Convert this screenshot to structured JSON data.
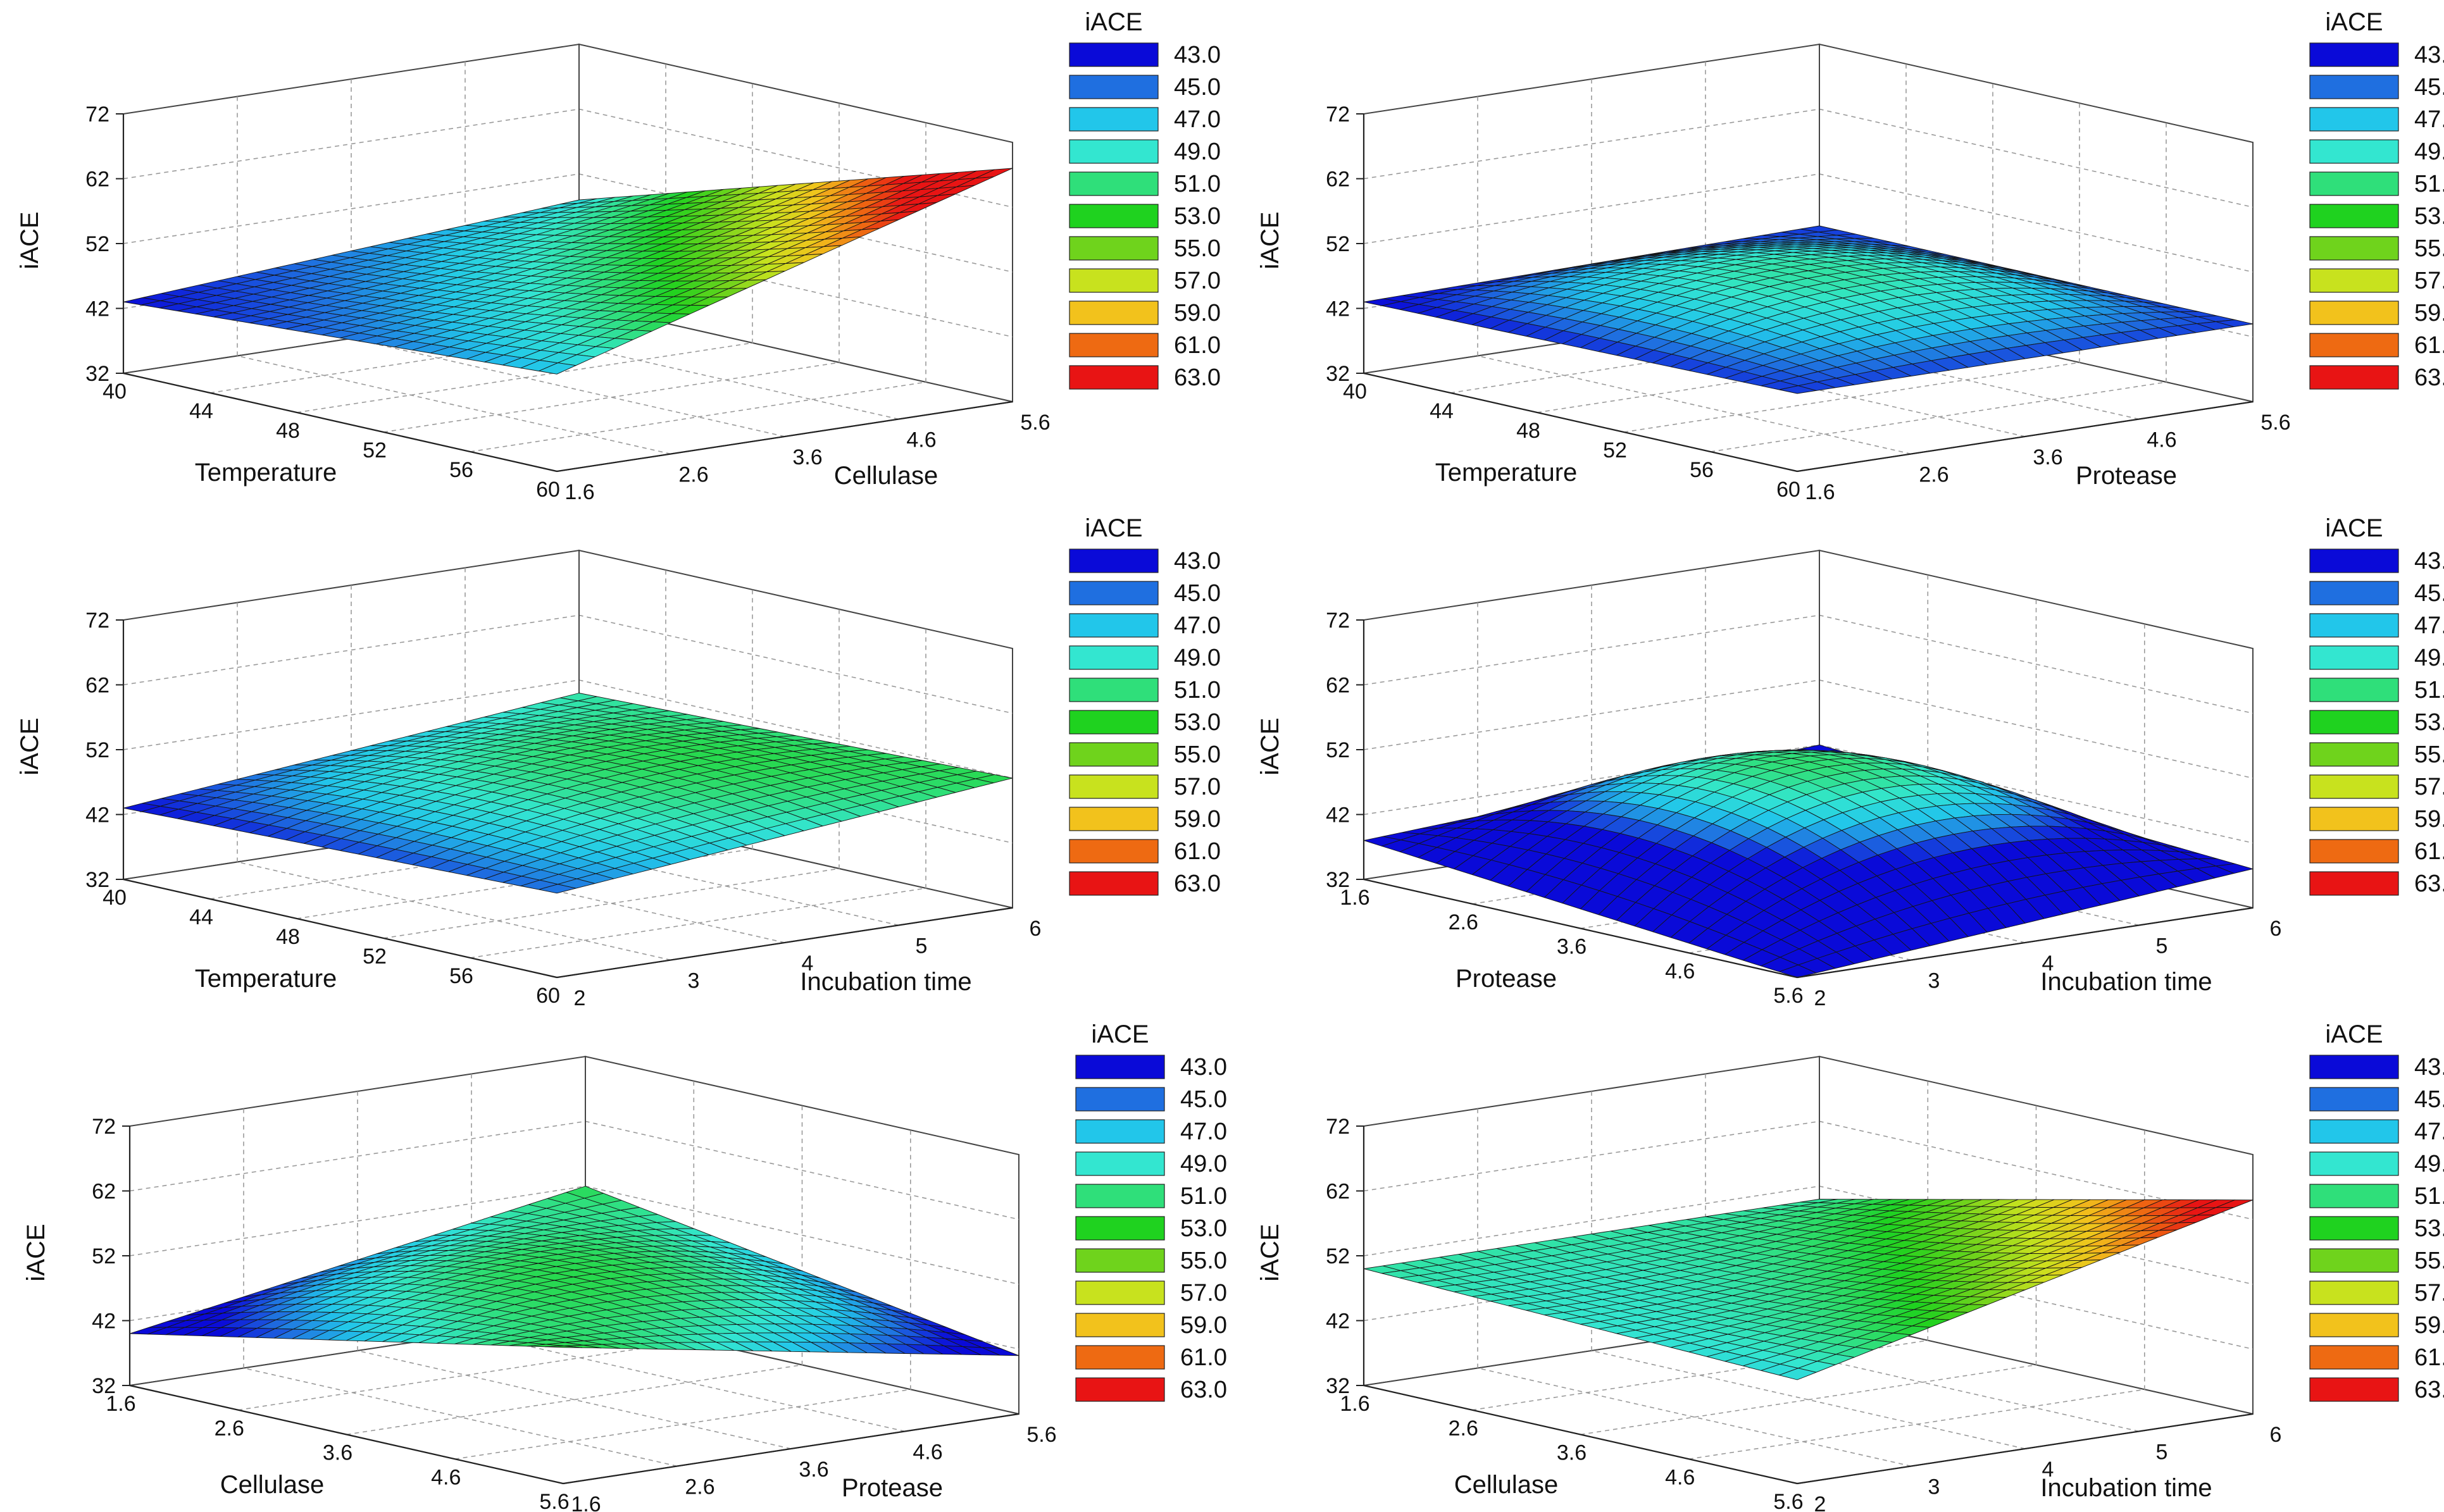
{
  "figure": {
    "description_free": true
  },
  "legend_title": "iACE",
  "legend_levels": [
    "43.0",
    "45.0",
    "47.0",
    "49.0",
    "51.0",
    "53.0",
    "55.0",
    "57.0",
    "59.0",
    "61.0",
    "63.0"
  ],
  "legend_colors": [
    "#0a0ad8",
    "#1f6fe0",
    "#22c6ea",
    "#33e6d0",
    "#2fdf7a",
    "#1fd21f",
    "#6fd31c",
    "#c8e21e",
    "#f2c21c",
    "#ee6a12",
    "#e81414"
  ],
  "chart_data": [
    {
      "type": "surface3d",
      "id": "panel-1",
      "xlabel": "Temperature",
      "ylabel": "Cellulase",
      "zlabel": "iACE",
      "x_ticks": [
        "40",
        "44",
        "48",
        "52",
        "56",
        "60"
      ],
      "y_ticks": [
        "1.6",
        "2.6",
        "3.6",
        "4.6",
        "5.6"
      ],
      "z_ticks": [
        "32",
        "42",
        "52",
        "62",
        "72"
      ],
      "xlim": [
        40,
        60
      ],
      "ylim": [
        1.6,
        5.6
      ],
      "zlim": [
        32,
        72
      ],
      "corner_values": {
        "x_min_y_min": 43,
        "x_max_y_min": 47,
        "x_min_y_max": 48,
        "x_max_y_max": 68
      },
      "center_value": 50,
      "legend_title": "iACE"
    },
    {
      "type": "surface3d",
      "id": "panel-2",
      "xlabel": "Temperature",
      "ylabel": "Protease",
      "zlabel": "iACE",
      "x_ticks": [
        "40",
        "44",
        "48",
        "52",
        "56",
        "60"
      ],
      "y_ticks": [
        "1.6",
        "2.6",
        "3.6",
        "4.6",
        "5.6"
      ],
      "z_ticks": [
        "32",
        "42",
        "52",
        "62",
        "72"
      ],
      "xlim": [
        40,
        60
      ],
      "ylim": [
        1.6,
        5.6
      ],
      "zlim": [
        32,
        72
      ],
      "corner_values": {
        "x_min_y_min": 43,
        "x_max_y_min": 44,
        "x_min_y_max": 44,
        "x_max_y_max": 44
      },
      "center_value": 50,
      "legend_title": "iACE"
    },
    {
      "type": "surface3d",
      "id": "panel-3",
      "xlabel": "Temperature",
      "ylabel": "Incubation time",
      "zlabel": "iACE",
      "x_ticks": [
        "40",
        "44",
        "48",
        "52",
        "56",
        "60"
      ],
      "y_ticks": [
        "2",
        "3",
        "4",
        "5",
        "6"
      ],
      "z_ticks": [
        "32",
        "42",
        "52",
        "62",
        "72"
      ],
      "xlim": [
        40,
        60
      ],
      "ylim": [
        2,
        6
      ],
      "zlim": [
        32,
        72
      ],
      "corner_values": {
        "x_min_y_min": 43,
        "x_max_y_min": 45,
        "x_min_y_max": 50,
        "x_max_y_max": 52
      },
      "center_value": 51,
      "legend_title": "iACE"
    },
    {
      "type": "surface3d",
      "id": "panel-4",
      "xlabel": "Protease",
      "ylabel": "Incubation time",
      "zlabel": "iACE",
      "x_ticks": [
        "1.6",
        "2.6",
        "3.6",
        "4.6",
        "5.6"
      ],
      "y_ticks": [
        "2",
        "3",
        "4",
        "5",
        "6"
      ],
      "z_ticks": [
        "32",
        "42",
        "52",
        "62",
        "72"
      ],
      "xlim": [
        1.6,
        5.6
      ],
      "ylim": [
        2,
        6
      ],
      "zlim": [
        32,
        72
      ],
      "corner_values": {
        "x_min_y_min": 38,
        "x_max_y_min": 32,
        "x_min_y_max": 42,
        "x_max_y_max": 38
      },
      "center_value": 51,
      "legend_title": "iACE"
    },
    {
      "type": "surface3d",
      "id": "panel-5",
      "xlabel": "Cellulase",
      "ylabel": "Protease",
      "zlabel": "iACE",
      "x_ticks": [
        "1.6",
        "2.6",
        "3.6",
        "4.6",
        "5.6"
      ],
      "y_ticks": [
        "1.6",
        "2.6",
        "3.6",
        "4.6",
        "5.6"
      ],
      "z_ticks": [
        "32",
        "42",
        "52",
        "62",
        "72"
      ],
      "xlim": [
        1.6,
        5.6
      ],
      "ylim": [
        1.6,
        5.6
      ],
      "zlim": [
        32,
        72
      ],
      "corner_values": {
        "x_min_y_min": 40,
        "x_max_y_min": 53,
        "x_min_y_max": 52,
        "x_max_y_max": 41
      },
      "center_value": 52,
      "legend_title": "iACE"
    },
    {
      "type": "surface3d",
      "id": "panel-6",
      "xlabel": "Cellulase",
      "ylabel": "Incubation time",
      "zlabel": "iACE",
      "x_ticks": [
        "1.6",
        "2.6",
        "3.6",
        "4.6",
        "5.6"
      ],
      "y_ticks": [
        "2",
        "3",
        "4",
        "5",
        "6"
      ],
      "z_ticks": [
        "32",
        "42",
        "52",
        "62",
        "72"
      ],
      "xlim": [
        1.6,
        5.6
      ],
      "ylim": [
        2,
        6
      ],
      "zlim": [
        32,
        72
      ],
      "corner_values": {
        "x_min_y_min": 50,
        "x_max_y_min": 48,
        "x_min_y_max": 50,
        "x_max_y_max": 65
      },
      "center_value": 51,
      "legend_title": "iACE"
    }
  ]
}
